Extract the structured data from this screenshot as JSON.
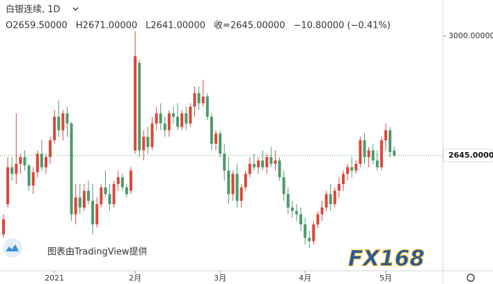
{
  "chart_data": {
    "type": "candlestick",
    "title": "白银连续, 1D",
    "ohlc_text": [
      "O2659.50000",
      "H2671.00000",
      "L2641.00000",
      "收=2645.00000",
      "−10.80000 (−0.41%)"
    ],
    "attribution": "图表由TradingView提供",
    "logo": "FX168",
    "up_color": "#d9473a",
    "down_color": "#4c9a6a",
    "ylim": [
      2302,
      3107
    ],
    "yticks": [
      {
        "value": 3000,
        "label": "3000.00000"
      }
    ],
    "last_price": {
      "value": 2645,
      "label": "2645.00000"
    },
    "categories": [
      null,
      null,
      null,
      null,
      null,
      null,
      null,
      null,
      null,
      null,
      null,
      null,
      "2021",
      null,
      null,
      null,
      null,
      null,
      null,
      null,
      null,
      null,
      null,
      null,
      null,
      null,
      null,
      null,
      null,
      null,
      null,
      "2月",
      null,
      null,
      null,
      null,
      null,
      null,
      null,
      null,
      null,
      null,
      null,
      null,
      null,
      null,
      null,
      null,
      null,
      null,
      null,
      "3月",
      null,
      null,
      null,
      null,
      null,
      null,
      null,
      null,
      null,
      null,
      null,
      null,
      null,
      null,
      null,
      null,
      null,
      null,
      null,
      "4月",
      null,
      null,
      null,
      null,
      null,
      null,
      null,
      null,
      null,
      null,
      null,
      null,
      null,
      null,
      null,
      null,
      null,
      null,
      "5月",
      null,
      null
    ],
    "open": [
      2410,
      2500,
      2610,
      2590,
      2620,
      2640,
      2615,
      2555,
      2595,
      2650,
      2610,
      2640,
      2690,
      2760,
      2720,
      2770,
      2740,
      2470,
      2520,
      2490,
      2540,
      2510,
      2440,
      2500,
      2550,
      2530,
      2500,
      2560,
      2580,
      2550,
      2540,
      2660,
      2920,
      2660,
      2700,
      2670,
      2740,
      2770,
      2740,
      2720,
      2770,
      2760,
      2730,
      2770,
      2740,
      2790,
      2830,
      2800,
      2820,
      2760,
      2680,
      2710,
      2650,
      2600,
      2530,
      2590,
      2510,
      2550,
      2590,
      2620,
      2610,
      2630,
      2610,
      2640,
      2620,
      2630,
      2580,
      2530,
      2490,
      2480,
      2470,
      2440,
      2400,
      2390,
      2440,
      2470,
      2490,
      2530,
      2500,
      2540,
      2560,
      2590,
      2610,
      2600,
      2620,
      2690,
      2640,
      2660,
      2630,
      2610,
      2690,
      2720,
      2659.5
    ],
    "high": [
      2470,
      2640,
      2640,
      2770,
      2650,
      2660,
      2620,
      2610,
      2660,
      2690,
      2650,
      2700,
      2780,
      2810,
      2780,
      2790,
      2745,
      2560,
      2560,
      2560,
      2570,
      2560,
      2520,
      2560,
      2600,
      2560,
      2570,
      2600,
      2590,
      2560,
      2610,
      3014,
      2930,
      2720,
      2730,
      2760,
      2790,
      2800,
      2760,
      2780,
      2790,
      2800,
      2780,
      2790,
      2800,
      2850,
      2850,
      2870,
      2830,
      2770,
      2720,
      2720,
      2680,
      2640,
      2600,
      2620,
      2560,
      2600,
      2640,
      2650,
      2640,
      2660,
      2650,
      2670,
      2660,
      2640,
      2600,
      2550,
      2510,
      2500,
      2490,
      2460,
      2420,
      2450,
      2480,
      2510,
      2540,
      2560,
      2550,
      2580,
      2600,
      2620,
      2640,
      2630,
      2700,
      2710,
      2670,
      2680,
      2660,
      2700,
      2740,
      2730,
      2671
    ],
    "low": [
      2400,
      2490,
      2570,
      2560,
      2590,
      2600,
      2540,
      2530,
      2580,
      2600,
      2590,
      2620,
      2680,
      2700,
      2690,
      2700,
      2450,
      2440,
      2470,
      2480,
      2500,
      2410,
      2430,
      2490,
      2520,
      2480,
      2490,
      2540,
      2540,
      2520,
      2530,
      2650,
      2640,
      2630,
      2650,
      2660,
      2720,
      2720,
      2700,
      2700,
      2740,
      2720,
      2720,
      2720,
      2730,
      2760,
      2780,
      2790,
      2750,
      2660,
      2660,
      2640,
      2570,
      2500,
      2510,
      2490,
      2490,
      2540,
      2580,
      2600,
      2590,
      2600,
      2590,
      2610,
      2600,
      2570,
      2510,
      2470,
      2460,
      2450,
      2420,
      2380,
      2370,
      2380,
      2430,
      2450,
      2480,
      2480,
      2490,
      2520,
      2540,
      2570,
      2580,
      2590,
      2610,
      2620,
      2610,
      2620,
      2600,
      2600,
      2660,
      2640,
      2641
    ],
    "close": [
      2455,
      2610,
      2590,
      2620,
      2640,
      2615,
      2555,
      2595,
      2650,
      2610,
      2640,
      2690,
      2760,
      2720,
      2770,
      2740,
      2470,
      2520,
      2490,
      2540,
      2510,
      2440,
      2500,
      2550,
      2530,
      2500,
      2560,
      2580,
      2550,
      2530,
      2600,
      2940,
      2660,
      2700,
      2670,
      2740,
      2770,
      2740,
      2720,
      2770,
      2760,
      2730,
      2770,
      2740,
      2790,
      2830,
      2800,
      2820,
      2760,
      2680,
      2710,
      2650,
      2600,
      2530,
      2590,
      2510,
      2550,
      2590,
      2620,
      2610,
      2630,
      2610,
      2640,
      2620,
      2630,
      2580,
      2530,
      2490,
      2480,
      2470,
      2440,
      2400,
      2390,
      2440,
      2470,
      2490,
      2530,
      2500,
      2540,
      2560,
      2590,
      2610,
      2600,
      2620,
      2690,
      2640,
      2660,
      2630,
      2610,
      2690,
      2720,
      2655,
      2645
    ]
  }
}
